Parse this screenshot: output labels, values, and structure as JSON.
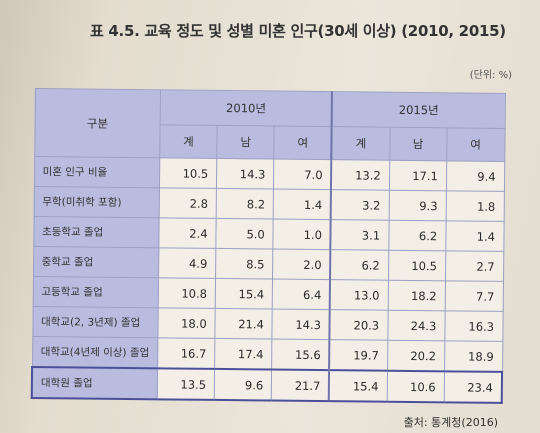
{
  "title": "표 4.5. 교육 정도 및 성별 미혼 인구(30세 이상) (2010, 2015)",
  "unit": "(단위: %)",
  "table": {
    "corner_label": "구분",
    "years": [
      "2010년",
      "2015년"
    ],
    "subheaders": [
      "계",
      "남",
      "여",
      "계",
      "남",
      "여"
    ],
    "rows": [
      {
        "label": "미혼 인구 비율",
        "values": [
          "10.5",
          "14.3",
          "7.0",
          "13.2",
          "17.1",
          "9.4"
        ]
      },
      {
        "label": "무학(미취학 포함)",
        "values": [
          "2.8",
          "8.2",
          "1.4",
          "3.2",
          "9.3",
          "1.8"
        ]
      },
      {
        "label": "초등학교 졸업",
        "values": [
          "2.4",
          "5.0",
          "1.0",
          "3.1",
          "6.2",
          "1.4"
        ]
      },
      {
        "label": "중학교 졸업",
        "values": [
          "4.9",
          "8.5",
          "2.0",
          "6.2",
          "10.5",
          "2.7"
        ]
      },
      {
        "label": "고등학교 졸업",
        "values": [
          "10.8",
          "15.4",
          "6.4",
          "13.0",
          "18.2",
          "7.7"
        ]
      },
      {
        "label": "대학교(2, 3년제) 졸업",
        "values": [
          "18.0",
          "21.4",
          "14.3",
          "20.3",
          "24.3",
          "16.3"
        ]
      },
      {
        "label": "대학교(4년제 이상) 졸업",
        "values": [
          "16.7",
          "17.4",
          "15.6",
          "19.7",
          "20.2",
          "18.9"
        ]
      },
      {
        "label": "대학원 졸업",
        "values": [
          "13.5",
          "9.6",
          "21.7",
          "15.4",
          "10.6",
          "23.4"
        ]
      }
    ]
  },
  "source": "출처: 통계청(2016)",
  "colors": {
    "header_bg": "#b9bcde",
    "cell_bg": "#f3efe7",
    "highlight_border": "#4b4f9a"
  }
}
